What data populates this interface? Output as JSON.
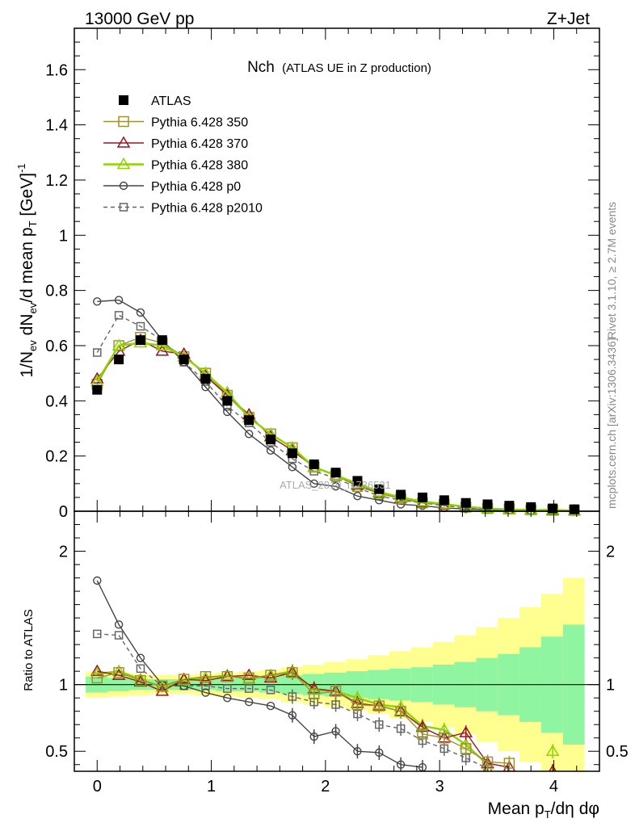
{
  "header": {
    "left": "13000 GeV pp",
    "right": "Z+Jet"
  },
  "side_text": {
    "rivet": "Rivet 3.1.10, ≥ 2.7M events",
    "mcplots": "mcplots.cern.ch [arXiv:1306.3436]"
  },
  "watermark": "ATLAS_2019_I1736531",
  "colors": {
    "data": "#000000",
    "p350": "#9b9430",
    "p370": "#9b1422",
    "p380": "#8fd400",
    "p0": "#444444",
    "p2010": "#666666",
    "band_inner": "#8ff5a0",
    "band_outer": "#ffff8f"
  },
  "chart_data": [
    {
      "type": "line",
      "panel": "main",
      "title": "Nch",
      "subtitle": "(ATLAS UE in Z production)",
      "ylabel": "1/N_ev dN_ev/d mean p_T [GeV]^-1",
      "xlim": [
        -0.2,
        4.4
      ],
      "ylim": [
        0,
        1.75
      ],
      "yticks": [
        0,
        0.2,
        0.4,
        0.6,
        0.8,
        1,
        1.2,
        1.4,
        1.6
      ],
      "ytick_labels": [
        "0",
        "0.2",
        "0.4",
        "0.6",
        "0.8",
        "1",
        "1.2",
        "1.4",
        "1.6"
      ],
      "x": [
        0,
        0.19,
        0.38,
        0.57,
        0.76,
        0.95,
        1.14,
        1.33,
        1.52,
        1.71,
        1.9,
        2.09,
        2.28,
        2.47,
        2.66,
        2.85,
        3.04,
        3.23,
        3.42,
        3.61,
        3.8,
        3.99,
        4.18
      ],
      "legend": [
        "ATLAS",
        "Pythia 6.428 350",
        "Pythia 6.428 370",
        "Pythia 6.428 380",
        "Pythia 6.428 p0",
        "Pythia 6.428 p2010"
      ],
      "series": [
        {
          "name": "ATLAS",
          "marker": "filled-square",
          "values": [
            0.44,
            0.55,
            0.62,
            0.62,
            0.55,
            0.48,
            0.4,
            0.33,
            0.26,
            0.21,
            0.17,
            0.14,
            0.11,
            0.08,
            0.06,
            0.05,
            0.04,
            0.03,
            0.025,
            0.02,
            0.015,
            0.01,
            0.007
          ]
        },
        {
          "name": "Pythia 6.428 350",
          "marker": "open-square",
          "values": [
            0.46,
            0.6,
            0.63,
            0.61,
            0.56,
            0.5,
            0.42,
            0.34,
            0.28,
            0.23,
            0.16,
            0.13,
            0.09,
            0.065,
            0.045,
            0.03,
            0.025,
            0.015,
            0.01,
            0.008,
            0.005,
            0.004,
            0.003
          ]
        },
        {
          "name": "Pythia 6.428 370",
          "marker": "open-triangle",
          "values": [
            0.48,
            0.58,
            0.62,
            0.58,
            0.57,
            0.49,
            0.42,
            0.35,
            0.27,
            0.22,
            0.16,
            0.13,
            0.095,
            0.068,
            0.048,
            0.033,
            0.024,
            0.018,
            0.01,
            0.007,
            0.005,
            0.003,
            0.002
          ]
        },
        {
          "name": "Pythia 6.428 380",
          "marker": "open-triangle",
          "values": [
            0.47,
            0.6,
            0.61,
            0.6,
            0.56,
            0.5,
            0.43,
            0.34,
            0.28,
            0.23,
            0.16,
            0.13,
            0.1,
            0.07,
            0.05,
            0.035,
            0.026,
            0.016,
            0.01,
            0.006,
            0.004,
            0.005,
            0.002
          ]
        },
        {
          "name": "Pythia 6.428 p0",
          "marker": "open-circle",
          "values": [
            0.76,
            0.765,
            0.72,
            0.62,
            0.54,
            0.45,
            0.36,
            0.28,
            0.22,
            0.16,
            0.1,
            0.09,
            0.055,
            0.04,
            0.025,
            0.02,
            0.012,
            0.008,
            0.005,
            0.003,
            0.002,
            0.001,
            0.001
          ]
        },
        {
          "name": "Pythia 6.428 p2010",
          "marker": "open-square-dashed",
          "values": [
            0.575,
            0.71,
            0.67,
            0.62,
            0.54,
            0.47,
            0.38,
            0.32,
            0.25,
            0.19,
            0.145,
            0.12,
            0.085,
            0.055,
            0.04,
            0.03,
            0.02,
            0.012,
            0.008,
            0.005,
            0.003,
            0.002,
            0.001
          ]
        }
      ]
    },
    {
      "type": "line",
      "panel": "ratio",
      "xlabel": "Mean p_T/dη dφ",
      "ylabel": "Ratio to ATLAS",
      "xlim": [
        -0.2,
        4.4
      ],
      "ylim": [
        0.35,
        2.3
      ],
      "yticks": [
        0.5,
        1,
        2
      ],
      "ytick_labels": [
        "0.5",
        "1",
        "2"
      ],
      "xticks": [
        0,
        1,
        2,
        3,
        4
      ],
      "xtick_labels": [
        "0",
        "1",
        "2",
        "3",
        "4"
      ],
      "x": [
        0,
        0.19,
        0.38,
        0.57,
        0.76,
        0.95,
        1.14,
        1.33,
        1.52,
        1.71,
        1.9,
        2.09,
        2.28,
        2.47,
        2.66,
        2.85,
        3.04,
        3.23,
        3.42,
        3.61,
        3.8,
        3.99,
        4.18
      ],
      "band_edges": [
        -0.1,
        0.09,
        0.28,
        0.47,
        0.66,
        0.85,
        1.04,
        1.23,
        1.42,
        1.61,
        1.8,
        1.99,
        2.18,
        2.37,
        2.56,
        2.75,
        2.94,
        3.13,
        3.32,
        3.51,
        3.7,
        3.89,
        4.08,
        4.27
      ],
      "band_inner": [
        0.06,
        0.05,
        0.04,
        0.04,
        0.04,
        0.04,
        0.05,
        0.05,
        0.06,
        0.07,
        0.08,
        0.09,
        0.1,
        0.11,
        0.12,
        0.13,
        0.15,
        0.17,
        0.2,
        0.23,
        0.28,
        0.36,
        0.45
      ],
      "band_outer": [
        0.1,
        0.09,
        0.08,
        0.07,
        0.07,
        0.08,
        0.09,
        0.1,
        0.11,
        0.13,
        0.15,
        0.17,
        0.19,
        0.22,
        0.25,
        0.28,
        0.32,
        0.37,
        0.43,
        0.5,
        0.58,
        0.68,
        0.8
      ],
      "series": [
        {
          "name": "Pythia 6.428 350",
          "values": [
            1.05,
            1.09,
            1.03,
            0.99,
            1.04,
            1.06,
            1.06,
            1.05,
            1.07,
            1.09,
            0.93,
            0.95,
            0.85,
            0.84,
            0.8,
            0.63,
            0.6,
            0.52,
            0.42,
            0.41,
            null,
            null,
            null
          ]
        },
        {
          "name": "Pythia 6.428 370",
          "values": [
            1.1,
            1.07,
            1.02,
            0.95,
            1.04,
            1.03,
            1.06,
            1.07,
            1.05,
            1.09,
            0.97,
            0.95,
            0.86,
            0.84,
            0.8,
            0.68,
            0.6,
            0.64,
            0.41,
            0.38,
            null,
            0.35,
            null
          ]
        },
        {
          "name": "Pythia 6.428 380",
          "values": [
            1.08,
            1.1,
            1.04,
            0.98,
            1.03,
            1.05,
            1.07,
            1.04,
            1.07,
            1.1,
            0.96,
            0.95,
            0.9,
            0.85,
            0.83,
            0.69,
            0.66,
            0.55,
            0.4,
            null,
            null,
            0.5,
            null
          ]
        },
        {
          "name": "Pythia 6.428 p0",
          "values": [
            1.78,
            1.45,
            1.2,
            1.0,
            0.99,
            0.94,
            0.9,
            0.87,
            0.84,
            0.77,
            0.61,
            0.65,
            0.5,
            0.49,
            0.4,
            0.38,
            null,
            null,
            null,
            null,
            null,
            null,
            null
          ]
        },
        {
          "name": "Pythia 6.428 p2010",
          "values": [
            1.38,
            1.37,
            1.12,
            0.99,
            0.99,
            0.99,
            0.97,
            0.97,
            0.96,
            0.91,
            0.87,
            0.85,
            0.78,
            0.7,
            0.67,
            0.58,
            0.52,
            0.45,
            0.37,
            null,
            null,
            null,
            null
          ]
        }
      ]
    }
  ]
}
